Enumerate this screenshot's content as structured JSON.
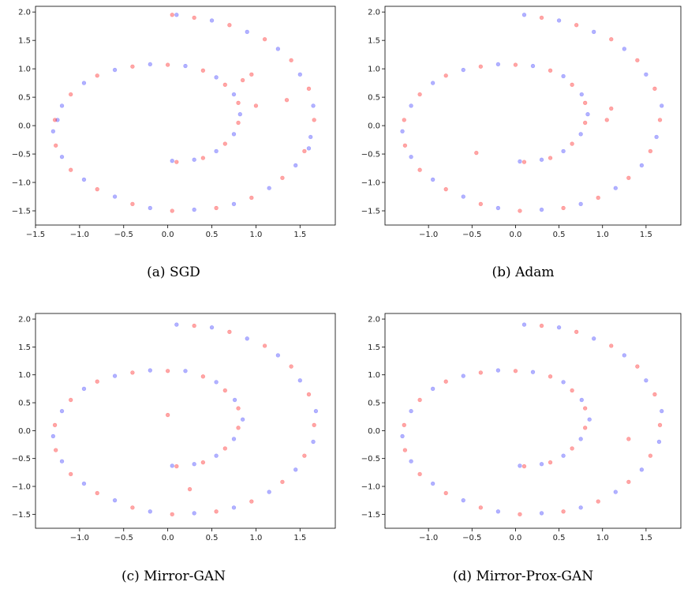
{
  "chart_data": [
    {
      "type": "scatter",
      "caption": "(a) SGD",
      "xlim": [
        -1.5,
        1.9
      ],
      "ylim": [
        -1.75,
        2.1
      ],
      "xticks": [
        -1.5,
        -1.0,
        -0.5,
        0.0,
        0.5,
        1.0,
        1.5
      ],
      "xtick_labels": [
        "−1.5",
        "−1.0",
        "−0.5",
        "0.0",
        "0.5",
        "1.0",
        "1.5"
      ],
      "yticks": [
        -1.5,
        -1.0,
        -0.5,
        0.0,
        0.5,
        1.0,
        1.5,
        2.0
      ],
      "ytick_labels": [
        "−1.5",
        "−1.0",
        "−0.5",
        "0.0",
        "0.5",
        "1.0",
        "1.5",
        "2.0"
      ],
      "grid": false,
      "series": [
        {
          "color": "#0000ff",
          "alpha": 0.3,
          "points": [
            [
              0.05,
              -0.62
            ],
            [
              0.3,
              -0.6
            ],
            [
              0.55,
              -0.45
            ],
            [
              0.75,
              -0.15
            ],
            [
              0.82,
              0.2
            ],
            [
              0.75,
              0.55
            ],
            [
              0.55,
              0.85
            ],
            [
              0.2,
              1.05
            ],
            [
              -0.2,
              1.08
            ],
            [
              -0.6,
              0.98
            ],
            [
              -0.95,
              0.75
            ],
            [
              -1.2,
              0.35
            ],
            [
              -1.3,
              -0.1
            ],
            [
              -1.2,
              -0.55
            ],
            [
              -0.95,
              -0.95
            ],
            [
              -0.6,
              -1.25
            ],
            [
              -0.2,
              -1.45
            ],
            [
              0.3,
              -1.48
            ],
            [
              0.75,
              -1.38
            ],
            [
              1.15,
              -1.1
            ],
            [
              1.45,
              -0.7
            ],
            [
              1.62,
              -0.2
            ],
            [
              1.65,
              0.35
            ],
            [
              1.5,
              0.9
            ],
            [
              1.25,
              1.35
            ],
            [
              0.9,
              1.65
            ],
            [
              0.5,
              1.85
            ],
            [
              0.1,
              1.95
            ],
            [
              1.6,
              -0.4
            ],
            [
              -1.25,
              0.1
            ]
          ]
        },
        {
          "color": "#ff0000",
          "alpha": 0.35,
          "points": [
            [
              0.1,
              -0.64
            ],
            [
              0.4,
              -0.57
            ],
            [
              0.65,
              -0.32
            ],
            [
              0.8,
              0.05
            ],
            [
              0.8,
              0.4
            ],
            [
              0.65,
              0.72
            ],
            [
              0.4,
              0.97
            ],
            [
              0.0,
              1.07
            ],
            [
              -0.4,
              1.04
            ],
            [
              -0.8,
              0.88
            ],
            [
              -1.1,
              0.55
            ],
            [
              -1.28,
              0.1
            ],
            [
              -1.27,
              -0.35
            ],
            [
              -1.1,
              -0.78
            ],
            [
              -0.8,
              -1.12
            ],
            [
              -0.4,
              -1.38
            ],
            [
              0.05,
              -1.5
            ],
            [
              0.55,
              -1.45
            ],
            [
              0.95,
              -1.27
            ],
            [
              1.3,
              -0.92
            ],
            [
              1.55,
              -0.45
            ],
            [
              1.66,
              0.1
            ],
            [
              1.6,
              0.65
            ],
            [
              1.4,
              1.15
            ],
            [
              1.1,
              1.52
            ],
            [
              0.7,
              1.77
            ],
            [
              0.3,
              1.9
            ],
            [
              0.05,
              1.95
            ],
            [
              0.95,
              0.9
            ],
            [
              1.0,
              0.35
            ],
            [
              0.85,
              0.8
            ],
            [
              1.35,
              0.45
            ]
          ]
        }
      ]
    },
    {
      "type": "scatter",
      "caption": "(b) Adam",
      "xlim": [
        -1.5,
        1.9
      ],
      "ylim": [
        -1.75,
        2.1
      ],
      "xticks": [
        -1.0,
        -0.5,
        0.0,
        0.5,
        1.0,
        1.5
      ],
      "xtick_labels": [
        "−1.0",
        "−0.5",
        "0.0",
        "0.5",
        "1.0",
        "1.5"
      ],
      "yticks": [
        -1.5,
        -1.0,
        -0.5,
        0.0,
        0.5,
        1.0,
        1.5,
        2.0
      ],
      "ytick_labels": [
        "−1.5",
        "−1.0",
        "−0.5",
        "0.0",
        "0.5",
        "1.0",
        "1.5",
        "2.0"
      ],
      "grid": false,
      "series": [
        {
          "color": "#0000ff",
          "alpha": 0.3,
          "points": [
            [
              0.05,
              -0.63
            ],
            [
              0.3,
              -0.6
            ],
            [
              0.55,
              -0.45
            ],
            [
              0.75,
              -0.15
            ],
            [
              0.83,
              0.2
            ],
            [
              0.76,
              0.55
            ],
            [
              0.55,
              0.87
            ],
            [
              0.2,
              1.05
            ],
            [
              -0.2,
              1.08
            ],
            [
              -0.6,
              0.98
            ],
            [
              -0.95,
              0.75
            ],
            [
              -1.2,
              0.35
            ],
            [
              -1.3,
              -0.1
            ],
            [
              -1.2,
              -0.55
            ],
            [
              -0.95,
              -0.95
            ],
            [
              -0.6,
              -1.25
            ],
            [
              -0.2,
              -1.45
            ],
            [
              0.3,
              -1.48
            ],
            [
              0.75,
              -1.38
            ],
            [
              1.15,
              -1.1
            ],
            [
              1.45,
              -0.7
            ],
            [
              1.62,
              -0.2
            ],
            [
              1.68,
              0.35
            ],
            [
              1.5,
              0.9
            ],
            [
              1.25,
              1.35
            ],
            [
              0.9,
              1.65
            ],
            [
              0.5,
              1.85
            ],
            [
              0.1,
              1.95
            ]
          ]
        },
        {
          "color": "#ff0000",
          "alpha": 0.35,
          "points": [
            [
              0.1,
              -0.64
            ],
            [
              0.4,
              -0.57
            ],
            [
              0.65,
              -0.32
            ],
            [
              0.8,
              0.05
            ],
            [
              0.8,
              0.4
            ],
            [
              0.65,
              0.72
            ],
            [
              0.4,
              0.97
            ],
            [
              0.0,
              1.07
            ],
            [
              -0.4,
              1.04
            ],
            [
              -0.8,
              0.88
            ],
            [
              -1.1,
              0.55
            ],
            [
              -1.28,
              0.1
            ],
            [
              -1.27,
              -0.35
            ],
            [
              -1.1,
              -0.78
            ],
            [
              -0.8,
              -1.12
            ],
            [
              -0.4,
              -1.38
            ],
            [
              0.05,
              -1.5
            ],
            [
              0.55,
              -1.45
            ],
            [
              0.95,
              -1.27
            ],
            [
              1.3,
              -0.92
            ],
            [
              1.55,
              -0.45
            ],
            [
              1.66,
              0.1
            ],
            [
              1.6,
              0.65
            ],
            [
              1.4,
              1.15
            ],
            [
              1.1,
              1.52
            ],
            [
              0.7,
              1.77
            ],
            [
              0.3,
              1.9
            ],
            [
              -0.45,
              -0.48
            ],
            [
              1.1,
              0.3
            ],
            [
              1.05,
              0.1
            ]
          ]
        }
      ]
    },
    {
      "type": "scatter",
      "caption": "(c) Mirror-GAN",
      "xlim": [
        -1.5,
        1.9
      ],
      "ylim": [
        -1.75,
        2.1
      ],
      "xticks": [
        -1.0,
        -0.5,
        0.0,
        0.5,
        1.0,
        1.5
      ],
      "xtick_labels": [
        "−1.0",
        "−0.5",
        "0.0",
        "0.5",
        "1.0",
        "1.5"
      ],
      "yticks": [
        -1.5,
        -1.0,
        -0.5,
        0.0,
        0.5,
        1.0,
        1.5,
        2.0
      ],
      "ytick_labels": [
        "−1.5",
        "−1.0",
        "−0.5",
        "0.0",
        "0.5",
        "1.0",
        "1.5",
        "2.0"
      ],
      "grid": false,
      "series": [
        {
          "color": "#0000ff",
          "alpha": 0.3,
          "points": [
            [
              0.05,
              -0.63
            ],
            [
              0.3,
              -0.6
            ],
            [
              0.55,
              -0.45
            ],
            [
              0.75,
              -0.15
            ],
            [
              0.85,
              0.2
            ],
            [
              0.76,
              0.55
            ],
            [
              0.55,
              0.87
            ],
            [
              0.2,
              1.07
            ],
            [
              -0.2,
              1.08
            ],
            [
              -0.6,
              0.98
            ],
            [
              -0.95,
              0.75
            ],
            [
              -1.2,
              0.35
            ],
            [
              -1.3,
              -0.1
            ],
            [
              -1.2,
              -0.55
            ],
            [
              -0.95,
              -0.95
            ],
            [
              -0.6,
              -1.25
            ],
            [
              -0.2,
              -1.45
            ],
            [
              0.3,
              -1.48
            ],
            [
              0.75,
              -1.38
            ],
            [
              1.15,
              -1.1
            ],
            [
              1.45,
              -0.7
            ],
            [
              1.65,
              -0.2
            ],
            [
              1.68,
              0.35
            ],
            [
              1.5,
              0.9
            ],
            [
              1.25,
              1.35
            ],
            [
              0.9,
              1.65
            ],
            [
              0.5,
              1.85
            ],
            [
              0.1,
              1.9
            ]
          ]
        },
        {
          "color": "#ff0000",
          "alpha": 0.35,
          "points": [
            [
              0.1,
              -0.64
            ],
            [
              0.4,
              -0.57
            ],
            [
              0.65,
              -0.32
            ],
            [
              0.8,
              0.05
            ],
            [
              0.8,
              0.4
            ],
            [
              0.65,
              0.72
            ],
            [
              0.4,
              0.97
            ],
            [
              0.0,
              1.07
            ],
            [
              -0.4,
              1.04
            ],
            [
              -0.8,
              0.88
            ],
            [
              -1.1,
              0.55
            ],
            [
              -1.28,
              0.1
            ],
            [
              -1.27,
              -0.35
            ],
            [
              -1.1,
              -0.78
            ],
            [
              -0.8,
              -1.12
            ],
            [
              -0.4,
              -1.38
            ],
            [
              0.05,
              -1.5
            ],
            [
              0.55,
              -1.45
            ],
            [
              0.95,
              -1.27
            ],
            [
              1.3,
              -0.92
            ],
            [
              1.55,
              -0.45
            ],
            [
              1.66,
              0.1
            ],
            [
              1.6,
              0.65
            ],
            [
              1.4,
              1.15
            ],
            [
              1.1,
              1.52
            ],
            [
              0.7,
              1.77
            ],
            [
              0.3,
              1.88
            ],
            [
              0.0,
              0.28
            ],
            [
              0.25,
              -1.05
            ]
          ]
        }
      ]
    },
    {
      "type": "scatter",
      "caption": "(d) Mirror-Prox-GAN",
      "xlim": [
        -1.5,
        1.9
      ],
      "ylim": [
        -1.75,
        2.1
      ],
      "xticks": [
        -1.0,
        -0.5,
        0.0,
        0.5,
        1.0,
        1.5
      ],
      "xtick_labels": [
        "−1.0",
        "−0.5",
        "0.0",
        "0.5",
        "1.0",
        "1.5"
      ],
      "yticks": [
        -1.5,
        -1.0,
        -0.5,
        0.0,
        0.5,
        1.0,
        1.5,
        2.0
      ],
      "ytick_labels": [
        "−1.5",
        "−1.0",
        "−0.5",
        "0.0",
        "0.5",
        "1.0",
        "1.5",
        "2.0"
      ],
      "grid": false,
      "series": [
        {
          "color": "#0000ff",
          "alpha": 0.3,
          "points": [
            [
              0.05,
              -0.63
            ],
            [
              0.3,
              -0.6
            ],
            [
              0.55,
              -0.45
            ],
            [
              0.75,
              -0.15
            ],
            [
              0.85,
              0.2
            ],
            [
              0.76,
              0.55
            ],
            [
              0.55,
              0.87
            ],
            [
              0.2,
              1.05
            ],
            [
              -0.2,
              1.08
            ],
            [
              -0.6,
              0.98
            ],
            [
              -0.95,
              0.75
            ],
            [
              -1.2,
              0.35
            ],
            [
              -1.3,
              -0.1
            ],
            [
              -1.2,
              -0.55
            ],
            [
              -0.95,
              -0.95
            ],
            [
              -0.6,
              -1.25
            ],
            [
              -0.2,
              -1.45
            ],
            [
              0.3,
              -1.48
            ],
            [
              0.75,
              -1.38
            ],
            [
              1.15,
              -1.1
            ],
            [
              1.45,
              -0.7
            ],
            [
              1.65,
              -0.2
            ],
            [
              1.68,
              0.35
            ],
            [
              1.5,
              0.9
            ],
            [
              1.25,
              1.35
            ],
            [
              0.9,
              1.65
            ],
            [
              0.5,
              1.85
            ],
            [
              0.1,
              1.9
            ]
          ]
        },
        {
          "color": "#ff0000",
          "alpha": 0.35,
          "points": [
            [
              0.1,
              -0.64
            ],
            [
              0.4,
              -0.57
            ],
            [
              0.65,
              -0.32
            ],
            [
              0.8,
              0.05
            ],
            [
              0.8,
              0.4
            ],
            [
              0.65,
              0.72
            ],
            [
              0.4,
              0.97
            ],
            [
              0.0,
              1.07
            ],
            [
              -0.4,
              1.04
            ],
            [
              -0.8,
              0.88
            ],
            [
              -1.1,
              0.55
            ],
            [
              -1.28,
              0.1
            ],
            [
              -1.27,
              -0.35
            ],
            [
              -1.1,
              -0.78
            ],
            [
              -0.8,
              -1.12
            ],
            [
              -0.4,
              -1.38
            ],
            [
              0.05,
              -1.5
            ],
            [
              0.55,
              -1.45
            ],
            [
              0.95,
              -1.27
            ],
            [
              1.3,
              -0.92
            ],
            [
              1.55,
              -0.45
            ],
            [
              1.66,
              0.1
            ],
            [
              1.6,
              0.65
            ],
            [
              1.4,
              1.15
            ],
            [
              1.1,
              1.52
            ],
            [
              0.7,
              1.77
            ],
            [
              0.3,
              1.88
            ],
            [
              1.3,
              -0.15
            ]
          ]
        }
      ]
    }
  ]
}
